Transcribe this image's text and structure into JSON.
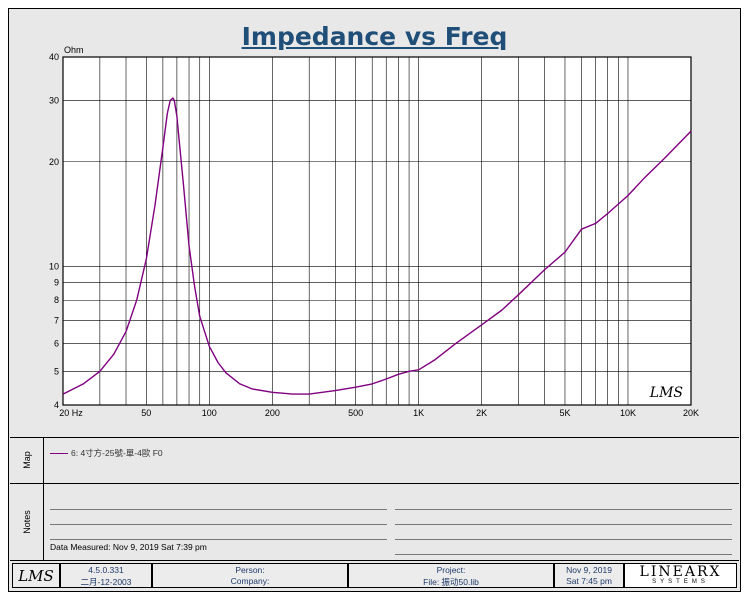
{
  "chart_data": {
    "type": "line",
    "title": "Impedance vs Freq",
    "ylabel": "Ohm",
    "x_scale": "log",
    "y_scale": "log",
    "xlim": [
      20,
      20000
    ],
    "ylim": [
      4,
      40
    ],
    "grid": true,
    "x_ticks": [
      "20 Hz",
      "50",
      "100",
      "200",
      "500",
      "1K",
      "2K",
      "5K",
      "10K",
      "20K"
    ],
    "y_ticks": [
      "4",
      "5",
      "6",
      "7",
      "8",
      "9",
      "10",
      "20",
      "30",
      "40"
    ],
    "series": [
      {
        "name": "6: 4寸方-25號-單-4歐 F0",
        "color": "#800080",
        "x": [
          20,
          25,
          30,
          35,
          40,
          45,
          50,
          55,
          60,
          63,
          65,
          67,
          68,
          70,
          72,
          75,
          80,
          85,
          90,
          100,
          110,
          120,
          140,
          160,
          200,
          250,
          300,
          400,
          500,
          600,
          700,
          800,
          900,
          1000,
          1200,
          1500,
          2000,
          2500,
          3000,
          4000,
          5000,
          6000,
          7000,
          8000,
          10000,
          12000,
          15000,
          20000
        ],
        "y": [
          4.3,
          4.6,
          5.0,
          5.6,
          6.5,
          8.0,
          10.5,
          15.0,
          22.0,
          27.5,
          30.0,
          30.5,
          30.0,
          27.0,
          22.5,
          17.5,
          11.5,
          8.8,
          7.2,
          5.9,
          5.3,
          4.95,
          4.6,
          4.45,
          4.35,
          4.3,
          4.3,
          4.4,
          4.5,
          4.6,
          4.75,
          4.9,
          5.0,
          5.05,
          5.4,
          6.0,
          6.8,
          7.5,
          8.3,
          9.8,
          11.0,
          12.8,
          13.3,
          14.2,
          16.0,
          18.0,
          20.5,
          24.5
        ]
      }
    ]
  },
  "map": {
    "label": "Map"
  },
  "notes": {
    "label": "Notes",
    "date_measured": "Data Measured: Nov  9, 2019  Sat  7:39 pm"
  },
  "footer": {
    "logo": "LMS",
    "version": "4.5.0.331",
    "version_date": "二月-12-2003",
    "person_label": "Person:",
    "company_label": "Company:",
    "project_label": "Project:",
    "file_label": "File: 振动50.lib",
    "date": "Nov  9, 2019",
    "time": "Sat  7:45 pm",
    "brand_top": "LINEARX",
    "brand_bottom": "SYSTEMS"
  },
  "watermark": "LMS"
}
